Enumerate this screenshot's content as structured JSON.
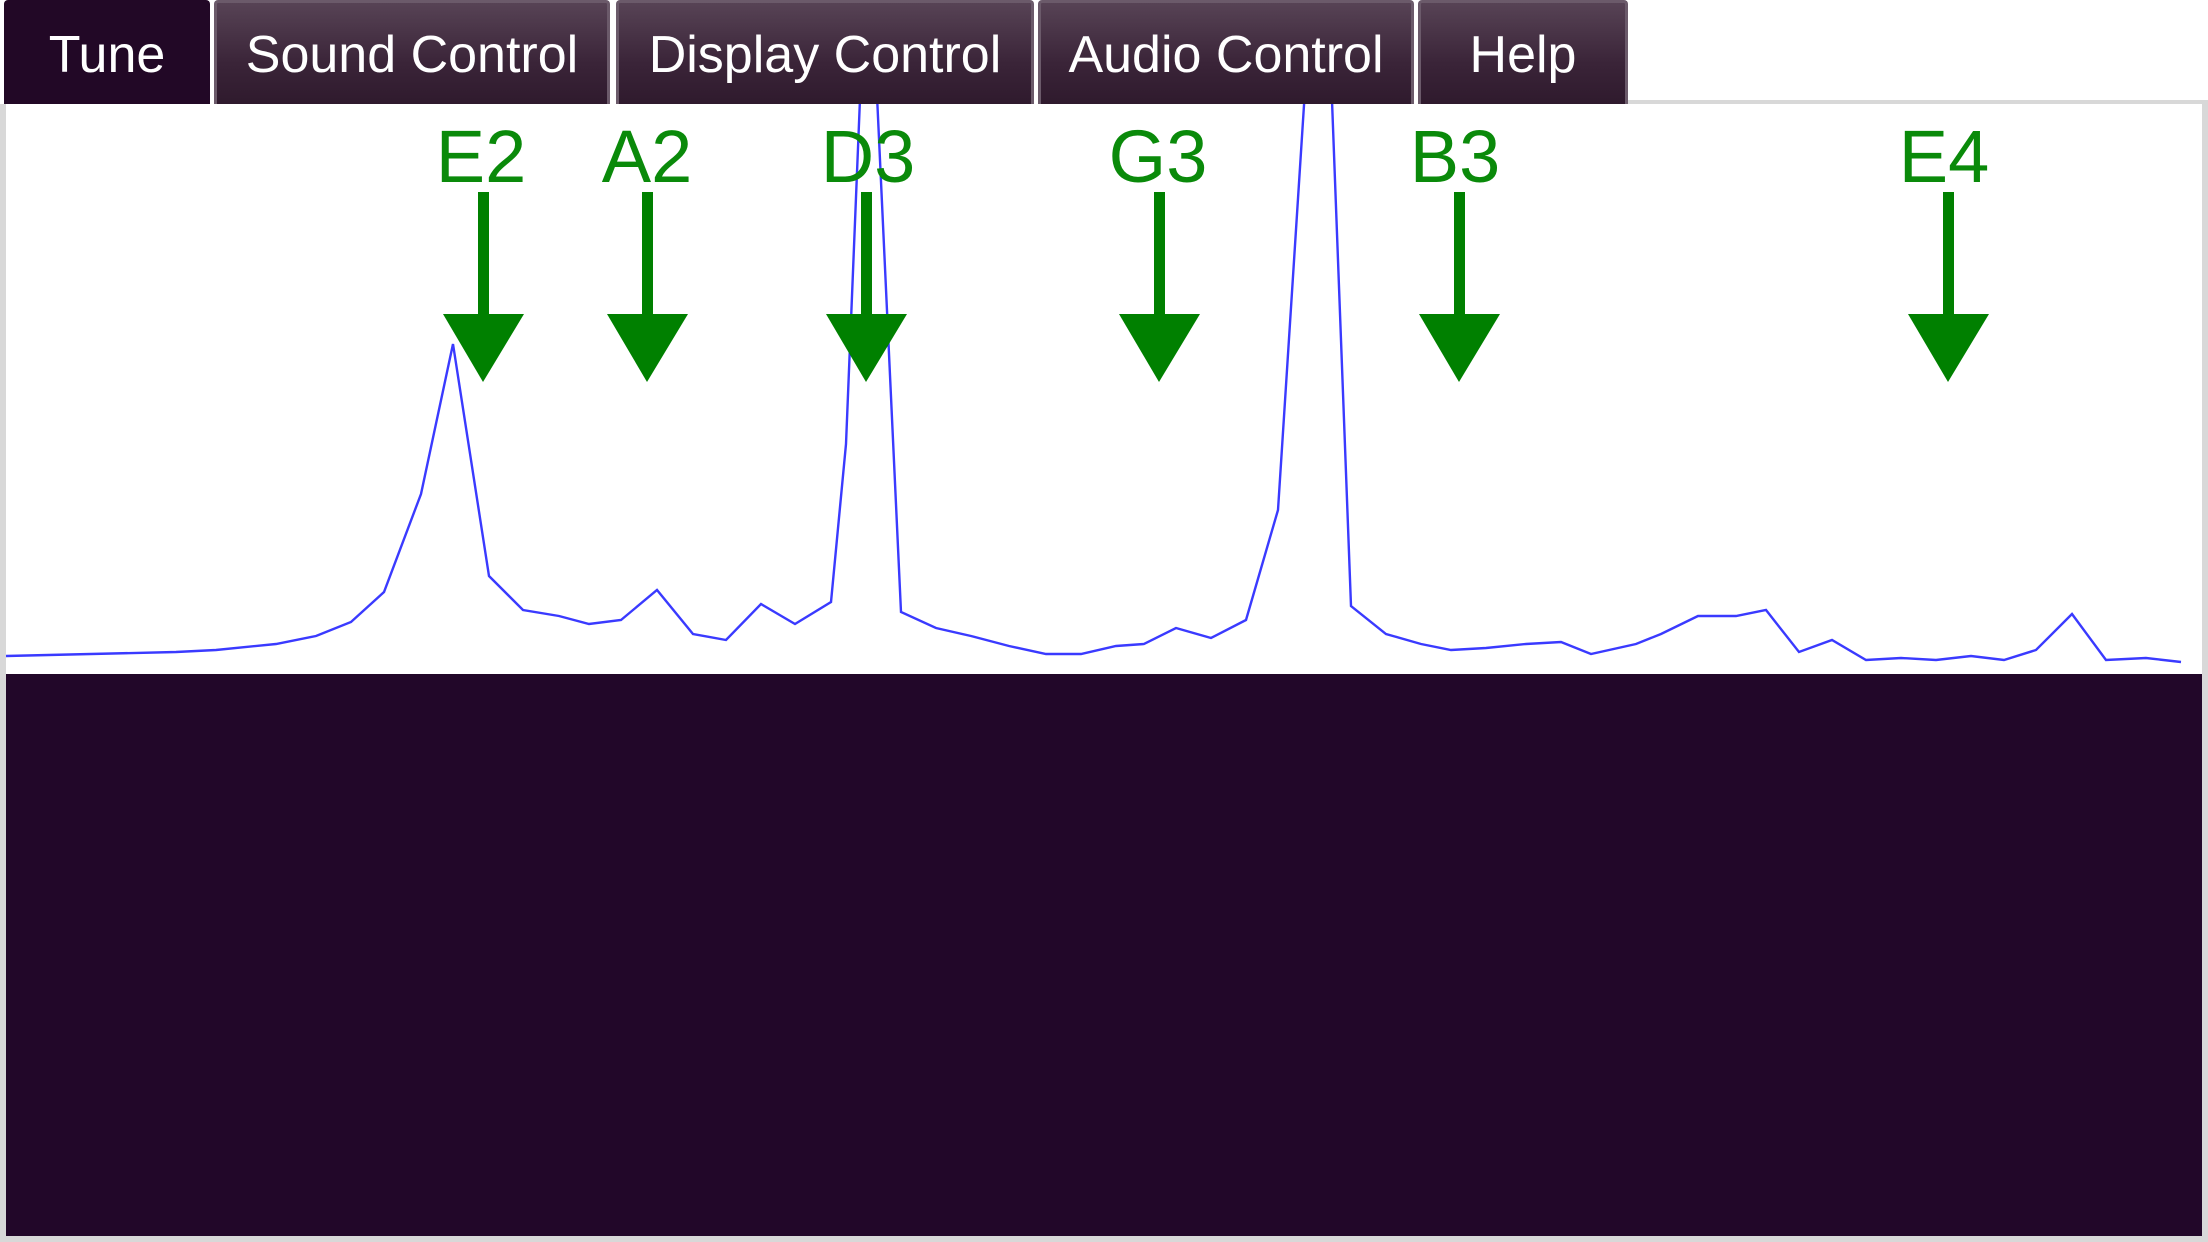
{
  "tabs": [
    {
      "id": "tune",
      "label": "Tune",
      "active": true
    },
    {
      "id": "sound-control",
      "label": "Sound Control",
      "active": false
    },
    {
      "id": "display-control",
      "label": "Display Control",
      "active": false
    },
    {
      "id": "audio-control",
      "label": "Audio Control",
      "active": false
    },
    {
      "id": "help",
      "label": "Help",
      "active": false
    }
  ],
  "spectrum": {
    "markers": [
      "E2",
      "A2",
      "D3",
      "G3",
      "B3",
      "E4"
    ],
    "colors": {
      "marker": "#008000",
      "trace": "#3a3aff",
      "panel": "#220729",
      "tab_active": "#220826"
    }
  }
}
